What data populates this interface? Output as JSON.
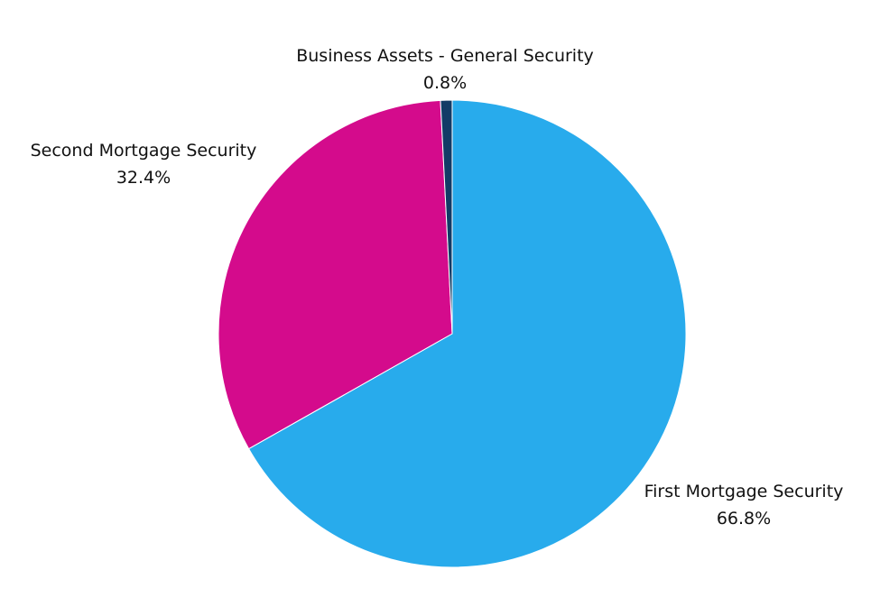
{
  "chart_data": {
    "type": "pie",
    "slices": [
      {
        "label": "First Mortgage Security",
        "value": 66.8,
        "value_label": "66.8%",
        "color": "#28ABEC"
      },
      {
        "label": "Second Mortgage Security",
        "value": 32.4,
        "value_label": "32.4%",
        "color": "#D40B8C"
      },
      {
        "label": "Business Assets - General Security",
        "value": 0.8,
        "value_label": "0.8%",
        "color": "#123B66"
      }
    ],
    "start_angle_deg": 0,
    "direction": "clockwise",
    "legend": "none",
    "label_placement": "outside slices"
  }
}
